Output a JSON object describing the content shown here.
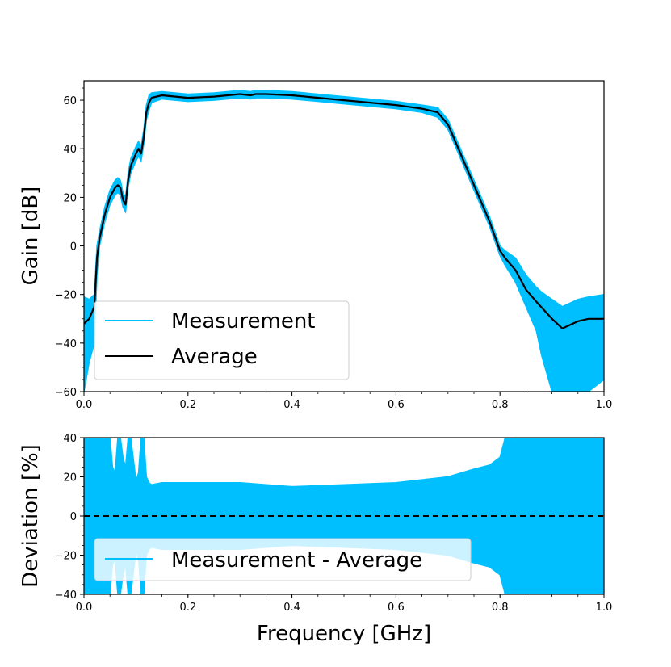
{
  "colors": {
    "measurement": "#00bfff",
    "average": "#000000",
    "zero_line": "#000000"
  },
  "chart_data": [
    {
      "type": "line",
      "panel": "gain",
      "xlabel": "Frequency [GHz]",
      "ylabel": "Gain [dB]",
      "xlim": [
        0.0,
        1.0
      ],
      "ylim": [
        -60,
        68
      ],
      "xticks": [
        "0.0",
        "0.2",
        "0.4",
        "0.6",
        "0.8",
        "1.0"
      ],
      "yticks": [
        "60",
        "40",
        "20",
        "0",
        "−20",
        "−40",
        "−60"
      ],
      "ytick_values": [
        60,
        40,
        20,
        0,
        -20,
        -40,
        -60
      ],
      "legend": {
        "location": "lower-left",
        "entries": [
          "Measurement",
          "Average"
        ]
      },
      "series": [
        {
          "name": "Average",
          "x": [
            0.0,
            0.01,
            0.02,
            0.025,
            0.03,
            0.04,
            0.05,
            0.06,
            0.065,
            0.07,
            0.075,
            0.08,
            0.085,
            0.09,
            0.1,
            0.105,
            0.11,
            0.115,
            0.12,
            0.125,
            0.13,
            0.15,
            0.2,
            0.25,
            0.3,
            0.32,
            0.33,
            0.35,
            0.4,
            0.5,
            0.6,
            0.65,
            0.68,
            0.7,
            0.72,
            0.75,
            0.78,
            0.8,
            0.81,
            0.83,
            0.85,
            0.87,
            0.9,
            0.92,
            0.95,
            0.97,
            1.0
          ],
          "y": [
            -32,
            -30,
            -25,
            -5,
            3,
            13,
            20,
            24,
            25,
            24,
            19,
            17,
            27,
            33,
            38,
            40,
            38,
            45,
            55,
            59,
            61,
            62,
            61,
            61.5,
            62.5,
            62,
            62.5,
            62.5,
            62,
            60,
            58,
            56.5,
            55,
            50,
            40,
            25,
            10,
            -2,
            -5,
            -10,
            -18,
            -23,
            -30,
            -34,
            -31,
            -30,
            -30
          ]
        },
        {
          "name": "Measurement",
          "envelope_x": [
            0.0,
            0.01,
            0.02,
            0.025,
            0.03,
            0.04,
            0.05,
            0.06,
            0.065,
            0.07,
            0.075,
            0.08,
            0.085,
            0.09,
            0.1,
            0.105,
            0.11,
            0.115,
            0.12,
            0.125,
            0.13,
            0.15,
            0.2,
            0.25,
            0.3,
            0.32,
            0.33,
            0.35,
            0.4,
            0.5,
            0.6,
            0.65,
            0.68,
            0.7,
            0.72,
            0.75,
            0.78,
            0.8,
            0.81,
            0.83,
            0.85,
            0.87,
            0.88,
            0.9,
            0.92,
            0.95,
            0.97,
            1.0
          ],
          "upper": [
            -21,
            -22,
            -20,
            0,
            6,
            16,
            23,
            27,
            28,
            27,
            22,
            20,
            30,
            36,
            41,
            43,
            41,
            48,
            58,
            62,
            63,
            63.5,
            62.5,
            63,
            64,
            63.5,
            64,
            64,
            63.5,
            61.5,
            59.5,
            58,
            57,
            52,
            42,
            27,
            12,
            0,
            -2,
            -5,
            -12,
            -17,
            -19,
            -22,
            -25,
            -22,
            -21,
            -20
          ],
          "lower": [
            -60,
            -48,
            -40,
            -12,
            0,
            10,
            17,
            21,
            22,
            21,
            16,
            14,
            24,
            30,
            35,
            37,
            35,
            42,
            52,
            56,
            59,
            60.5,
            59.5,
            60,
            61,
            60.5,
            61,
            61,
            60.5,
            58.5,
            56.5,
            55,
            53,
            48,
            38,
            23,
            8,
            -4,
            -8,
            -15,
            -25,
            -35,
            -45,
            -60,
            -60,
            -60,
            -60,
            -55
          ]
        }
      ]
    },
    {
      "type": "area",
      "panel": "deviation",
      "xlabel": "Frequency [GHz]",
      "ylabel": "Deviation [%]",
      "xlim": [
        0.0,
        1.0
      ],
      "ylim": [
        -40,
        40
      ],
      "xticks": [
        "0.0",
        "0.2",
        "0.4",
        "0.6",
        "0.8",
        "1.0"
      ],
      "yticks": [
        "40",
        "20",
        "0",
        "−20",
        "−40"
      ],
      "ytick_values": [
        40,
        20,
        0,
        -20,
        -40
      ],
      "reference_line": {
        "y": 0,
        "style": "dashed"
      },
      "legend": {
        "location": "lower-left",
        "entries": [
          "Measurement - Average"
        ]
      },
      "series": [
        {
          "name": "Measurement - Average",
          "envelope_x": [
            0.0,
            0.02,
            0.025,
            0.03,
            0.04,
            0.05,
            0.055,
            0.06,
            0.065,
            0.07,
            0.075,
            0.08,
            0.085,
            0.09,
            0.1,
            0.105,
            0.11,
            0.115,
            0.12,
            0.125,
            0.13,
            0.15,
            0.2,
            0.3,
            0.4,
            0.5,
            0.6,
            0.7,
            0.75,
            0.78,
            0.8,
            0.81,
            0.82,
            1.0
          ],
          "upper": [
            40,
            40,
            40,
            40,
            40,
            40,
            25,
            22,
            40,
            40,
            30,
            25,
            40,
            40,
            18,
            22,
            40,
            40,
            20,
            17,
            16,
            17,
            17,
            17,
            15,
            16,
            17,
            20,
            24,
            26,
            30,
            40,
            40,
            40
          ],
          "lower": [
            -40,
            -40,
            -40,
            -40,
            -40,
            -40,
            -25,
            -22,
            -40,
            -40,
            -30,
            -25,
            -40,
            -40,
            -18,
            -22,
            -40,
            -40,
            -20,
            -17,
            -16,
            -17,
            -17,
            -17,
            -15,
            -16,
            -17,
            -20,
            -24,
            -26,
            -30,
            -40,
            -40,
            -40
          ]
        }
      ]
    }
  ]
}
